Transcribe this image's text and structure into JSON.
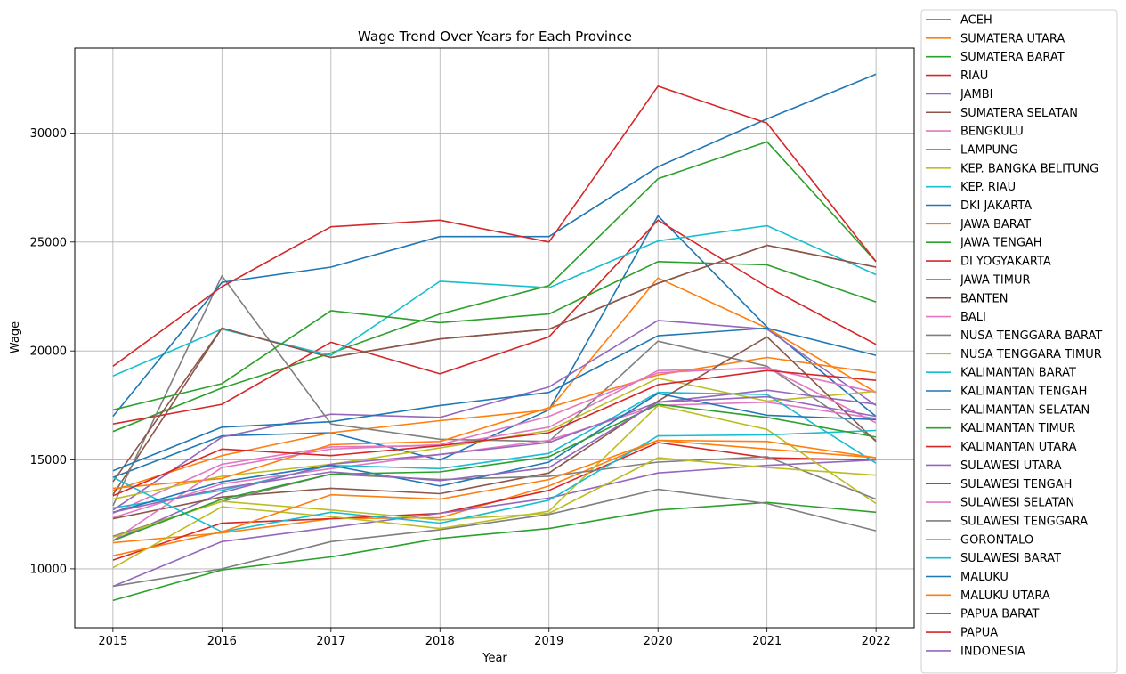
{
  "chart_data": {
    "type": "line",
    "title": "Wage Trend Over Years for Each Province",
    "xlabel": "Year",
    "ylabel": "Wage",
    "x": [
      2015,
      2016,
      2017,
      2018,
      2019,
      2020,
      2021,
      2022
    ],
    "x_tick_labels": [
      "2015",
      "2016",
      "2017",
      "2018",
      "2019",
      "2020",
      "2021",
      "2022"
    ],
    "y_ticks": [
      10000,
      15000,
      20000,
      25000,
      30000
    ],
    "y_tick_labels": [
      "10000",
      "15000",
      "20000",
      "25000",
      "30000"
    ],
    "ylim": [
      7300,
      33900
    ],
    "xlim": [
      2014.65,
      2022.35
    ],
    "grid": true,
    "legend_position": "outside-right",
    "series": [
      {
        "name": "ACEH",
        "color": "#1f77b4",
        "values": [
          14200,
          16100,
          16250,
          15000,
          17300,
          26200,
          21100,
          17000
        ]
      },
      {
        "name": "SUMATERA UTARA",
        "color": "#ff7f0e",
        "values": [
          13600,
          15200,
          16250,
          16800,
          17300,
          23350,
          21050,
          18100
        ]
      },
      {
        "name": "SUMATERA BARAT",
        "color": "#2ca02c",
        "values": [
          16300,
          18300,
          19900,
          21700,
          23000,
          27900,
          29600,
          24100
        ]
      },
      {
        "name": "RIAU",
        "color": "#d62728",
        "values": [
          16650,
          17550,
          20400,
          18950,
          20650,
          26000,
          22950,
          20300
        ]
      },
      {
        "name": "JAMBI",
        "color": "#9467bd",
        "values": [
          12700,
          16050,
          17100,
          16950,
          18350,
          21400,
          21000,
          17500
        ]
      },
      {
        "name": "SUMATERA SELATAN",
        "color": "#8c564b",
        "values": [
          13400,
          21050,
          19700,
          20550,
          21000,
          23100,
          24850,
          23850
        ]
      },
      {
        "name": "BENGKULU",
        "color": "#e377c2",
        "values": [
          12550,
          14800,
          15600,
          15650,
          16500,
          19100,
          19200,
          18100
        ]
      },
      {
        "name": "LAMPUNG",
        "color": "#7f7f7f",
        "values": [
          12900,
          23450,
          16650,
          15950,
          15850,
          20450,
          19300,
          15900
        ]
      },
      {
        "name": "KEP. BANGKA BELITUNG",
        "color": "#bcbd22",
        "values": [
          13200,
          14250,
          14800,
          15550,
          16350,
          18750,
          17700,
          18150
        ]
      },
      {
        "name": "KEP. RIAU",
        "color": "#17becf",
        "values": [
          18850,
          21000,
          19800,
          23200,
          22900,
          25050,
          25750,
          23500
        ]
      },
      {
        "name": "DKI JAKARTA",
        "color": "#1f77b4",
        "values": [
          17000,
          23150,
          23850,
          25250,
          25250,
          28450,
          30650,
          32700
        ]
      },
      {
        "name": "JAWA BARAT",
        "color": "#ff7f0e",
        "values": [
          11200,
          11650,
          12300,
          12350,
          13800,
          15900,
          15500,
          15100
        ]
      },
      {
        "name": "JAWA TENGAH",
        "color": "#2ca02c",
        "values": [
          8550,
          9950,
          10550,
          11400,
          11850,
          12700,
          13050,
          12600
        ]
      },
      {
        "name": "DI YOGYAKARTA",
        "color": "#d62728",
        "values": [
          10400,
          12100,
          12300,
          12550,
          13600,
          15800,
          15100,
          15000
        ]
      },
      {
        "name": "JAWA TIMUR",
        "color": "#9467bd",
        "values": [
          9200,
          11250,
          11900,
          12550,
          13250,
          14400,
          14750,
          15000
        ]
      },
      {
        "name": "BANTEN",
        "color": "#8c564b",
        "values": [
          14000,
          21050,
          19700,
          20550,
          21000,
          23100,
          24850,
          23850
        ]
      },
      {
        "name": "BALI",
        "color": "#e377c2",
        "values": [
          12350,
          13900,
          14600,
          15250,
          15900,
          17500,
          17650,
          16900
        ]
      },
      {
        "name": "NUSA TENGGARA BARAT",
        "color": "#7f7f7f",
        "values": [
          9200,
          10000,
          11250,
          11800,
          12500,
          13650,
          13000,
          11750
        ]
      },
      {
        "name": "NUSA TENGGARA TIMUR",
        "color": "#bcbd22",
        "values": [
          10050,
          12850,
          12400,
          11850,
          12650,
          17500,
          16400,
          13000
        ]
      },
      {
        "name": "KALIMANTAN BARAT",
        "color": "#17becf",
        "values": [
          12800,
          13600,
          14750,
          14600,
          15300,
          18100,
          18000,
          14850
        ]
      },
      {
        "name": "KALIMANTAN TENGAH",
        "color": "#1f77b4",
        "values": [
          14500,
          16500,
          16750,
          17500,
          18100,
          20700,
          21050,
          19800
        ]
      },
      {
        "name": "KALIMANTAN SELATAN",
        "color": "#ff7f0e",
        "values": [
          13700,
          14150,
          15700,
          15850,
          17400,
          18900,
          19700,
          19000
        ]
      },
      {
        "name": "KALIMANTAN TIMUR",
        "color": "#2ca02c",
        "values": [
          17300,
          18500,
          21850,
          21300,
          21700,
          24100,
          23950,
          22250
        ]
      },
      {
        "name": "KALIMANTAN UTARA",
        "color": "#d62728",
        "values": [
          19300,
          22950,
          25700,
          26000,
          25000,
          32150,
          30450,
          24100
        ]
      },
      {
        "name": "SULAWESI UTARA",
        "color": "#9467bd",
        "values": [
          11300,
          13500,
          14800,
          15250,
          15800,
          17650,
          18200,
          17550
        ]
      },
      {
        "name": "SULAWESI TENGAH",
        "color": "#8c564b",
        "values": [
          12300,
          13300,
          13700,
          13450,
          14400,
          17700,
          20650,
          15850
        ]
      },
      {
        "name": "SULAWESI SELATAN",
        "color": "#e377c2",
        "values": [
          11300,
          14650,
          15500,
          15700,
          17000,
          19000,
          19250,
          16700
        ]
      },
      {
        "name": "SULAWESI TENGGARA",
        "color": "#7f7f7f",
        "values": [
          11500,
          13100,
          14350,
          14100,
          14250,
          14900,
          15150,
          13200
        ]
      },
      {
        "name": "GORONTALO",
        "color": "#bcbd22",
        "values": [
          11450,
          13100,
          12700,
          12250,
          12550,
          15100,
          14650,
          14300
        ]
      },
      {
        "name": "SULAWESI BARAT",
        "color": "#17becf",
        "values": [
          14200,
          11700,
          12600,
          12100,
          13150,
          16100,
          16150,
          16350
        ]
      },
      {
        "name": "MALUKU",
        "color": "#1f77b4",
        "values": [
          12600,
          14000,
          14750,
          13800,
          14900,
          18050,
          17050,
          16850
        ]
      },
      {
        "name": "MALUKU UTARA",
        "color": "#ff7f0e",
        "values": [
          10600,
          11700,
          13400,
          13200,
          14100,
          15900,
          15850,
          15100
        ]
      },
      {
        "name": "PAPUA BARAT",
        "color": "#2ca02c",
        "values": [
          11300,
          13200,
          14350,
          14450,
          15150,
          17550,
          16950,
          16050
        ]
      },
      {
        "name": "PAPUA",
        "color": "#d62728",
        "values": [
          13350,
          15500,
          15200,
          15650,
          16250,
          18450,
          19100,
          18650
        ]
      },
      {
        "name": "INDONESIA",
        "color": "#9467bd",
        "values": [
          12600,
          13700,
          14450,
          14050,
          14650,
          17650,
          17900,
          17000
        ]
      }
    ]
  }
}
